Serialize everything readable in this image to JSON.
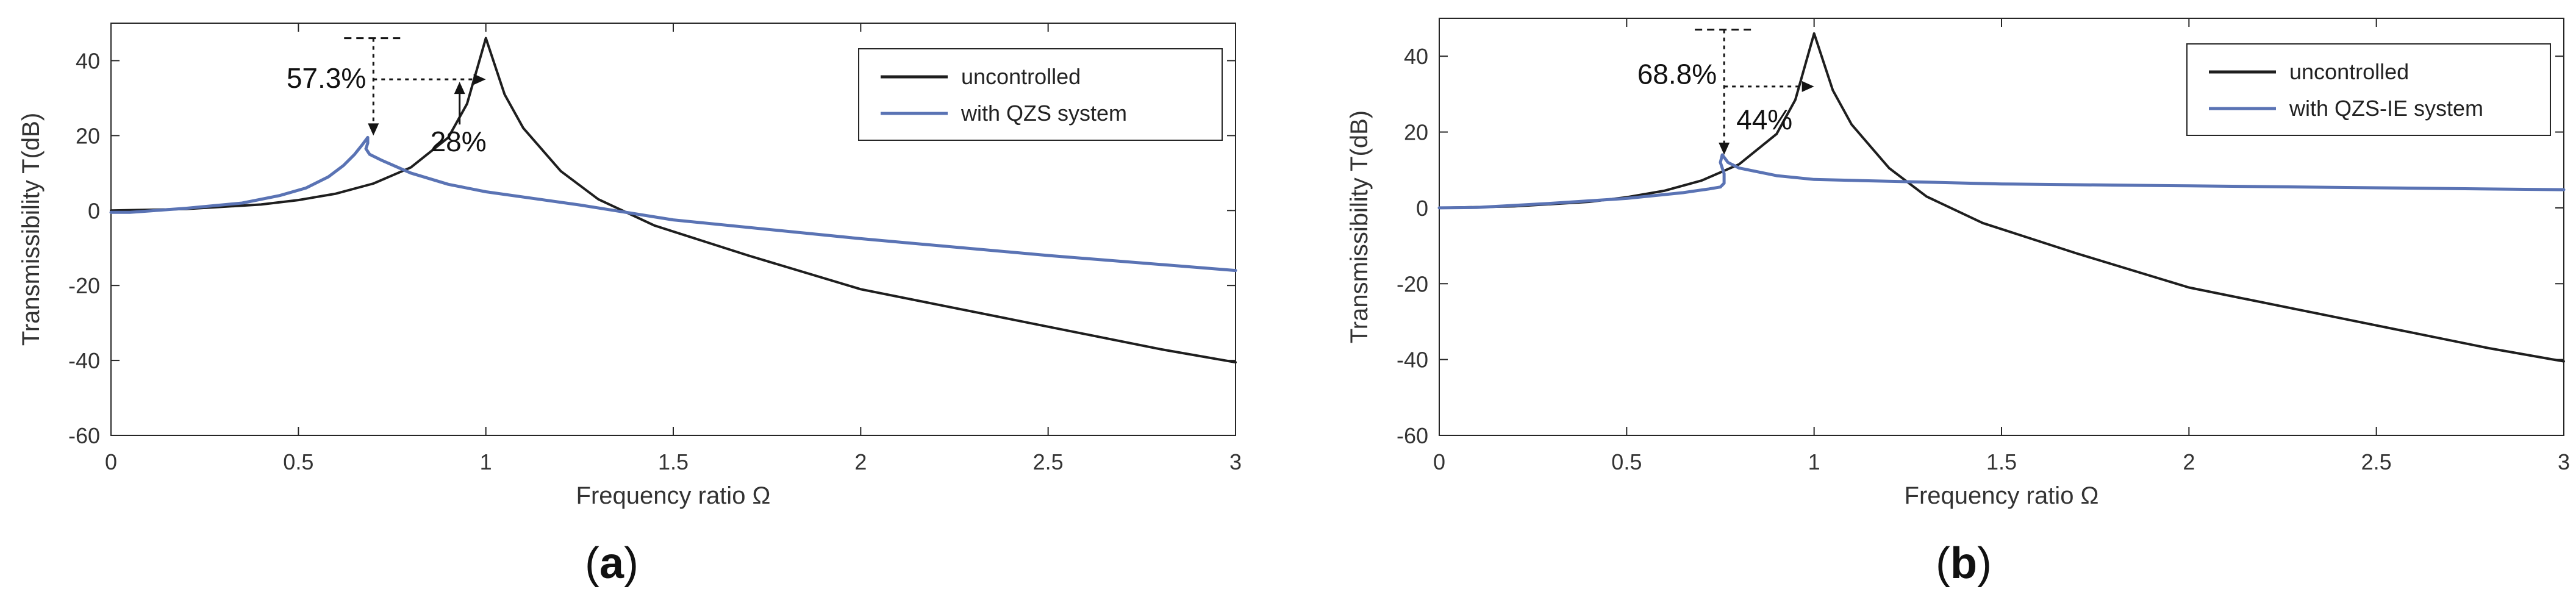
{
  "colors": {
    "uncontrolled": "#1e1e1e",
    "controlled": "#5a73b4",
    "axis": "#262626",
    "grid": "#e6e6e6",
    "annotation": "#141414"
  },
  "chart_data": [
    {
      "type": "line",
      "panel_label": "a",
      "xlabel": "Frequency ratio  Ω",
      "ylabel": "Transmissibility T(dB)",
      "xlim": [
        0,
        3
      ],
      "ylim": [
        -60,
        50
      ],
      "xticks": [
        0,
        0.5,
        1,
        1.5,
        2,
        2.5,
        3
      ],
      "xtick_labels": [
        "0",
        "0.5",
        "1",
        "1.5",
        "2",
        "2.5",
        "3"
      ],
      "yticks": [
        -60,
        -40,
        -20,
        0,
        20,
        40
      ],
      "ytick_labels": [
        "-60",
        "-40",
        "-20",
        "0",
        "20",
        "40"
      ],
      "grid": false,
      "legend_position": "top-right",
      "series": [
        {
          "name": "uncontrolled",
          "color_key": "uncontrolled",
          "x": [
            0,
            0.2,
            0.4,
            0.5,
            0.6,
            0.7,
            0.8,
            0.9,
            0.95,
            1.0,
            1.05,
            1.1,
            1.2,
            1.3,
            1.45,
            1.7,
            2.0,
            2.3,
            2.6,
            2.8,
            3.0
          ],
          "y": [
            0,
            0.4,
            1.6,
            2.8,
            4.5,
            7.2,
            11.5,
            19.5,
            28.5,
            46,
            31,
            22,
            10.5,
            3.0,
            -4.0,
            -12.0,
            -21.0,
            -27.0,
            -33.0,
            -37.0,
            -40.5
          ]
        },
        {
          "name": "with QZS system",
          "color_key": "controlled",
          "x": [
            0,
            0.05,
            0.2,
            0.35,
            0.45,
            0.52,
            0.58,
            0.62,
            0.65,
            0.67,
            0.685,
            0.685,
            0.68,
            0.69,
            0.72,
            0.8,
            0.9,
            1.0,
            1.25,
            1.5,
            2.0,
            2.5,
            3.0
          ],
          "y": [
            -0.5,
            -0.5,
            0.6,
            2.0,
            4.0,
            6.0,
            9.0,
            12.0,
            15.0,
            17.5,
            19.5,
            18.0,
            16.5,
            15.0,
            13.5,
            10.0,
            7.0,
            5.0,
            1.5,
            -2.5,
            -7.5,
            -12.0,
            -16.0
          ]
        }
      ],
      "annotations": [
        {
          "text": "57.3%",
          "kind": "vertical-reduction",
          "x": 0.7,
          "y_top": 46,
          "y_bottom": 20
        },
        {
          "text": "28%",
          "kind": "horizontal-shift",
          "x_from": 0.7,
          "x_to": 1.0,
          "y": 35,
          "pointer_x": 0.93,
          "pointer_y": 35
        }
      ]
    },
    {
      "type": "line",
      "panel_label": "b",
      "xlabel": "Frequency ratio  Ω",
      "ylabel": "Transmissibility T(dB)",
      "xlim": [
        0,
        3
      ],
      "ylim": [
        -60,
        50
      ],
      "xticks": [
        0,
        0.5,
        1,
        1.5,
        2,
        2.5,
        3
      ],
      "xtick_labels": [
        "0",
        "0.5",
        "1",
        "1.5",
        "2",
        "2.5",
        "3"
      ],
      "yticks": [
        -60,
        -40,
        -20,
        0,
        20,
        40
      ],
      "ytick_labels": [
        "-60",
        "-40",
        "-20",
        "0",
        "20",
        "40"
      ],
      "grid": false,
      "legend_position": "top-right",
      "series": [
        {
          "name": "uncontrolled",
          "color_key": "uncontrolled",
          "x": [
            0,
            0.2,
            0.4,
            0.5,
            0.6,
            0.7,
            0.8,
            0.9,
            0.95,
            1.0,
            1.05,
            1.1,
            1.2,
            1.3,
            1.45,
            1.7,
            2.0,
            2.3,
            2.6,
            2.8,
            3.0
          ],
          "y": [
            0,
            0.4,
            1.6,
            2.8,
            4.5,
            7.2,
            11.5,
            19.5,
            28.5,
            46,
            31,
            22,
            10.5,
            3.0,
            -4.0,
            -12.0,
            -21.0,
            -27.0,
            -33.0,
            -37.0,
            -40.5
          ]
        },
        {
          "name": "with QZS-IE system",
          "color_key": "controlled",
          "x": [
            0,
            0.1,
            0.3,
            0.5,
            0.65,
            0.72,
            0.75,
            0.76,
            0.76,
            0.75,
            0.755,
            0.77,
            0.8,
            0.9,
            1.0,
            1.5,
            2.0,
            2.5,
            3.0
          ],
          "y": [
            0,
            0.1,
            1.2,
            2.5,
            4.0,
            5.0,
            5.5,
            6.5,
            9.0,
            12.0,
            14.0,
            12.0,
            10.5,
            8.5,
            7.5,
            6.3,
            5.8,
            5.3,
            4.8
          ]
        }
      ],
      "annotations": [
        {
          "text": "68.8%",
          "kind": "vertical-reduction",
          "x": 0.76,
          "y_top": 47,
          "y_bottom": 14
        },
        {
          "text": "44%",
          "kind": "horizontal-shift",
          "x_from": 0.76,
          "x_to": 1.0,
          "y": 32
        }
      ]
    }
  ]
}
